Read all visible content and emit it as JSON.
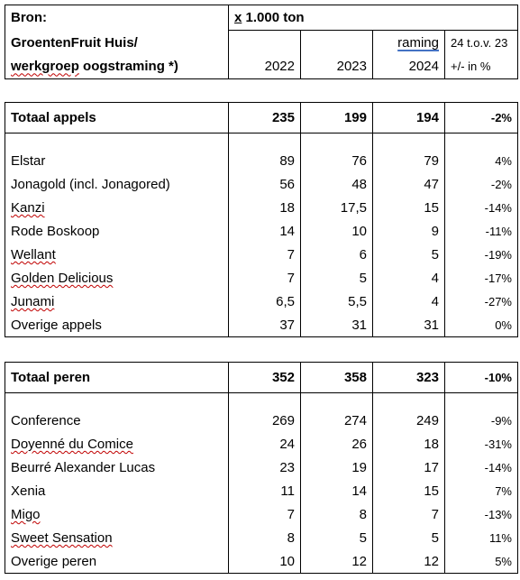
{
  "header": {
    "source_label": "Bron:",
    "unit_prefix": "x",
    "unit_rest": " 1.000 ton",
    "source_line1": "GroentenFruit Huis/",
    "source_line2_a": "werkgroep",
    "source_line2_b": " oogstraming *)",
    "raming": "raming",
    "change_line1": "24 t.o.v. 23",
    "change_line2": "+/- in %",
    "years": [
      "2022",
      "2023",
      "2024"
    ]
  },
  "apples": {
    "total": {
      "label": "Totaal appels",
      "v2022": "235",
      "v2023": "199",
      "v2024": "194",
      "change": "-2%"
    },
    "rows": [
      {
        "label": "Elstar",
        "v2022": "89",
        "v2023": "76",
        "v2024": "79",
        "change": "4%"
      },
      {
        "label": "Jonagold (incl. Jonagored)",
        "v2022": "56",
        "v2023": "48",
        "v2024": "47",
        "change": "-2%"
      },
      {
        "label": "Kanzi",
        "v2022": "18",
        "v2023": "17,5",
        "v2024": "15",
        "change": "-14%"
      },
      {
        "label": "Rode Boskoop",
        "v2022": "14",
        "v2023": "10",
        "v2024": "9",
        "change": "-11%"
      },
      {
        "label": "Wellant",
        "v2022": "7",
        "v2023": "6",
        "v2024": "5",
        "change": "-19%"
      },
      {
        "label": "Golden Delicious",
        "v2022": "7",
        "v2023": "5",
        "v2024": "4",
        "change": "-17%"
      },
      {
        "label": "Junami",
        "v2022": "6,5",
        "v2023": "5,5",
        "v2024": "4",
        "change": "-27%"
      },
      {
        "label": "Overige appels",
        "v2022": "37",
        "v2023": "31",
        "v2024": "31",
        "change": "0%"
      }
    ]
  },
  "pears": {
    "total": {
      "label": "Totaal peren",
      "v2022": "352",
      "v2023": "358",
      "v2024": "323",
      "change": "-10%"
    },
    "rows": [
      {
        "label": "Conference",
        "v2022": "269",
        "v2023": "274",
        "v2024": "249",
        "change": "-9%"
      },
      {
        "label": "Doyenné du Comice",
        "v2022": "24",
        "v2023": "26",
        "v2024": "18",
        "change": "-31%"
      },
      {
        "label": "Beurré Alexander Lucas",
        "v2022": "23",
        "v2023": "19",
        "v2024": "17",
        "change": "-14%"
      },
      {
        "label": "Xenia",
        "v2022": "11",
        "v2023": "14",
        "v2024": "15",
        "change": "7%"
      },
      {
        "label": "Migo",
        "v2022": "7",
        "v2023": "8",
        "v2024": "7",
        "change": "-13%"
      },
      {
        "label": "Sweet Sensation",
        "v2022": "8",
        "v2023": "5",
        "v2024": "5",
        "change": "11%"
      },
      {
        "label": "Overige peren",
        "v2022": "10",
        "v2023": "12",
        "v2024": "12",
        "change": "5%"
      }
    ]
  }
}
